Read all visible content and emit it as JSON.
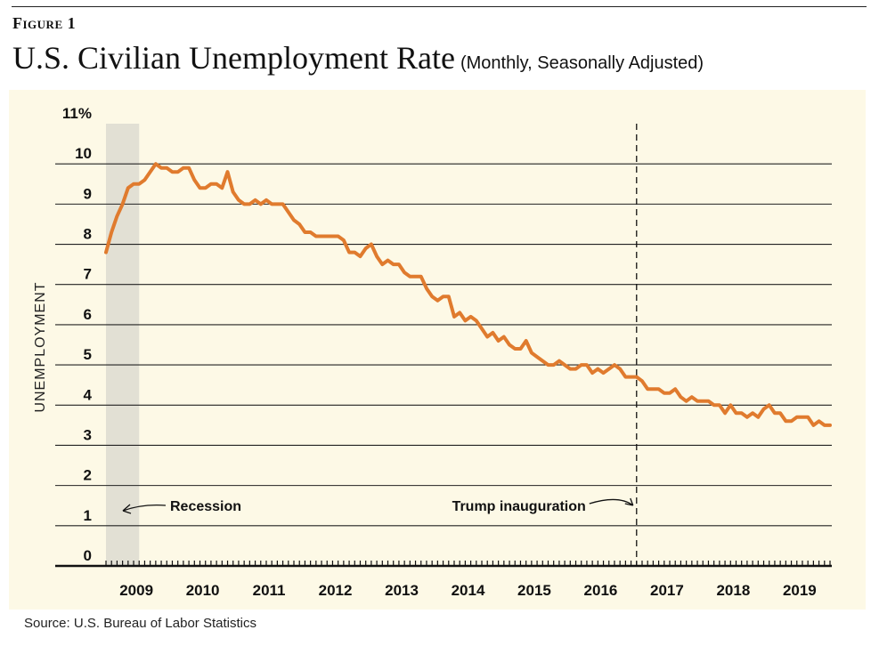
{
  "figure_label": "Figure 1",
  "title": "U.S. Civilian Unemployment Rate",
  "subtitle": "(Monthly, Seasonally Adjusted)",
  "source": "Source: U.S. Bureau of Labor Statistics",
  "colors": {
    "line": "#e07b2e",
    "panel": "#fdf9e6",
    "recession": "#e2e0d4",
    "grid": "#222222"
  },
  "chart_data": {
    "type": "line",
    "title": "U.S. Civilian Unemployment Rate",
    "ylabel": "UNEMPLOYMENT",
    "xlabel": "",
    "ylim": [
      0,
      11
    ],
    "y_ticks": [
      0,
      1,
      2,
      3,
      4,
      5,
      6,
      7,
      8,
      9,
      10,
      11
    ],
    "y_tick_labels": [
      "0",
      "1",
      "2",
      "3",
      "4",
      "5",
      "6",
      "7",
      "8",
      "9",
      "10",
      "11%"
    ],
    "x_start": "2009-01",
    "x_tick_labels": [
      "2009",
      "2010",
      "2011",
      "2012",
      "2013",
      "2014",
      "2015",
      "2016",
      "2017",
      "2018",
      "2019"
    ],
    "grid": true,
    "series": [
      {
        "name": "Unemployment rate (%)",
        "values": [
          7.8,
          8.3,
          8.7,
          9.0,
          9.4,
          9.5,
          9.5,
          9.6,
          9.8,
          10.0,
          9.9,
          9.9,
          9.8,
          9.8,
          9.9,
          9.9,
          9.6,
          9.4,
          9.4,
          9.5,
          9.5,
          9.4,
          9.8,
          9.3,
          9.1,
          9.0,
          9.0,
          9.1,
          9.0,
          9.1,
          9.0,
          9.0,
          9.0,
          8.8,
          8.6,
          8.5,
          8.3,
          8.3,
          8.2,
          8.2,
          8.2,
          8.2,
          8.2,
          8.1,
          7.8,
          7.8,
          7.7,
          7.9,
          8.0,
          7.7,
          7.5,
          7.6,
          7.5,
          7.5,
          7.3,
          7.2,
          7.2,
          7.2,
          6.9,
          6.7,
          6.6,
          6.7,
          6.7,
          6.2,
          6.3,
          6.1,
          6.2,
          6.1,
          5.9,
          5.7,
          5.8,
          5.6,
          5.7,
          5.5,
          5.4,
          5.4,
          5.6,
          5.3,
          5.2,
          5.1,
          5.0,
          5.0,
          5.1,
          5.0,
          4.9,
          4.9,
          5.0,
          5.0,
          4.8,
          4.9,
          4.8,
          4.9,
          5.0,
          4.9,
          4.7,
          4.7,
          4.7,
          4.6,
          4.4,
          4.4,
          4.4,
          4.3,
          4.3,
          4.4,
          4.2,
          4.1,
          4.2,
          4.1,
          4.1,
          4.1,
          4.0,
          4.0,
          3.8,
          4.0,
          3.8,
          3.8,
          3.7,
          3.8,
          3.7,
          3.9,
          4.0,
          3.8,
          3.8,
          3.6,
          3.6,
          3.7,
          3.7,
          3.7,
          3.5,
          3.6,
          3.5,
          3.5
        ]
      }
    ],
    "recession": {
      "label": "Recession",
      "start": "2009-01",
      "end": "2009-06"
    },
    "annotations": [
      {
        "label": "Trump inauguration",
        "date": "2017-01"
      }
    ]
  }
}
